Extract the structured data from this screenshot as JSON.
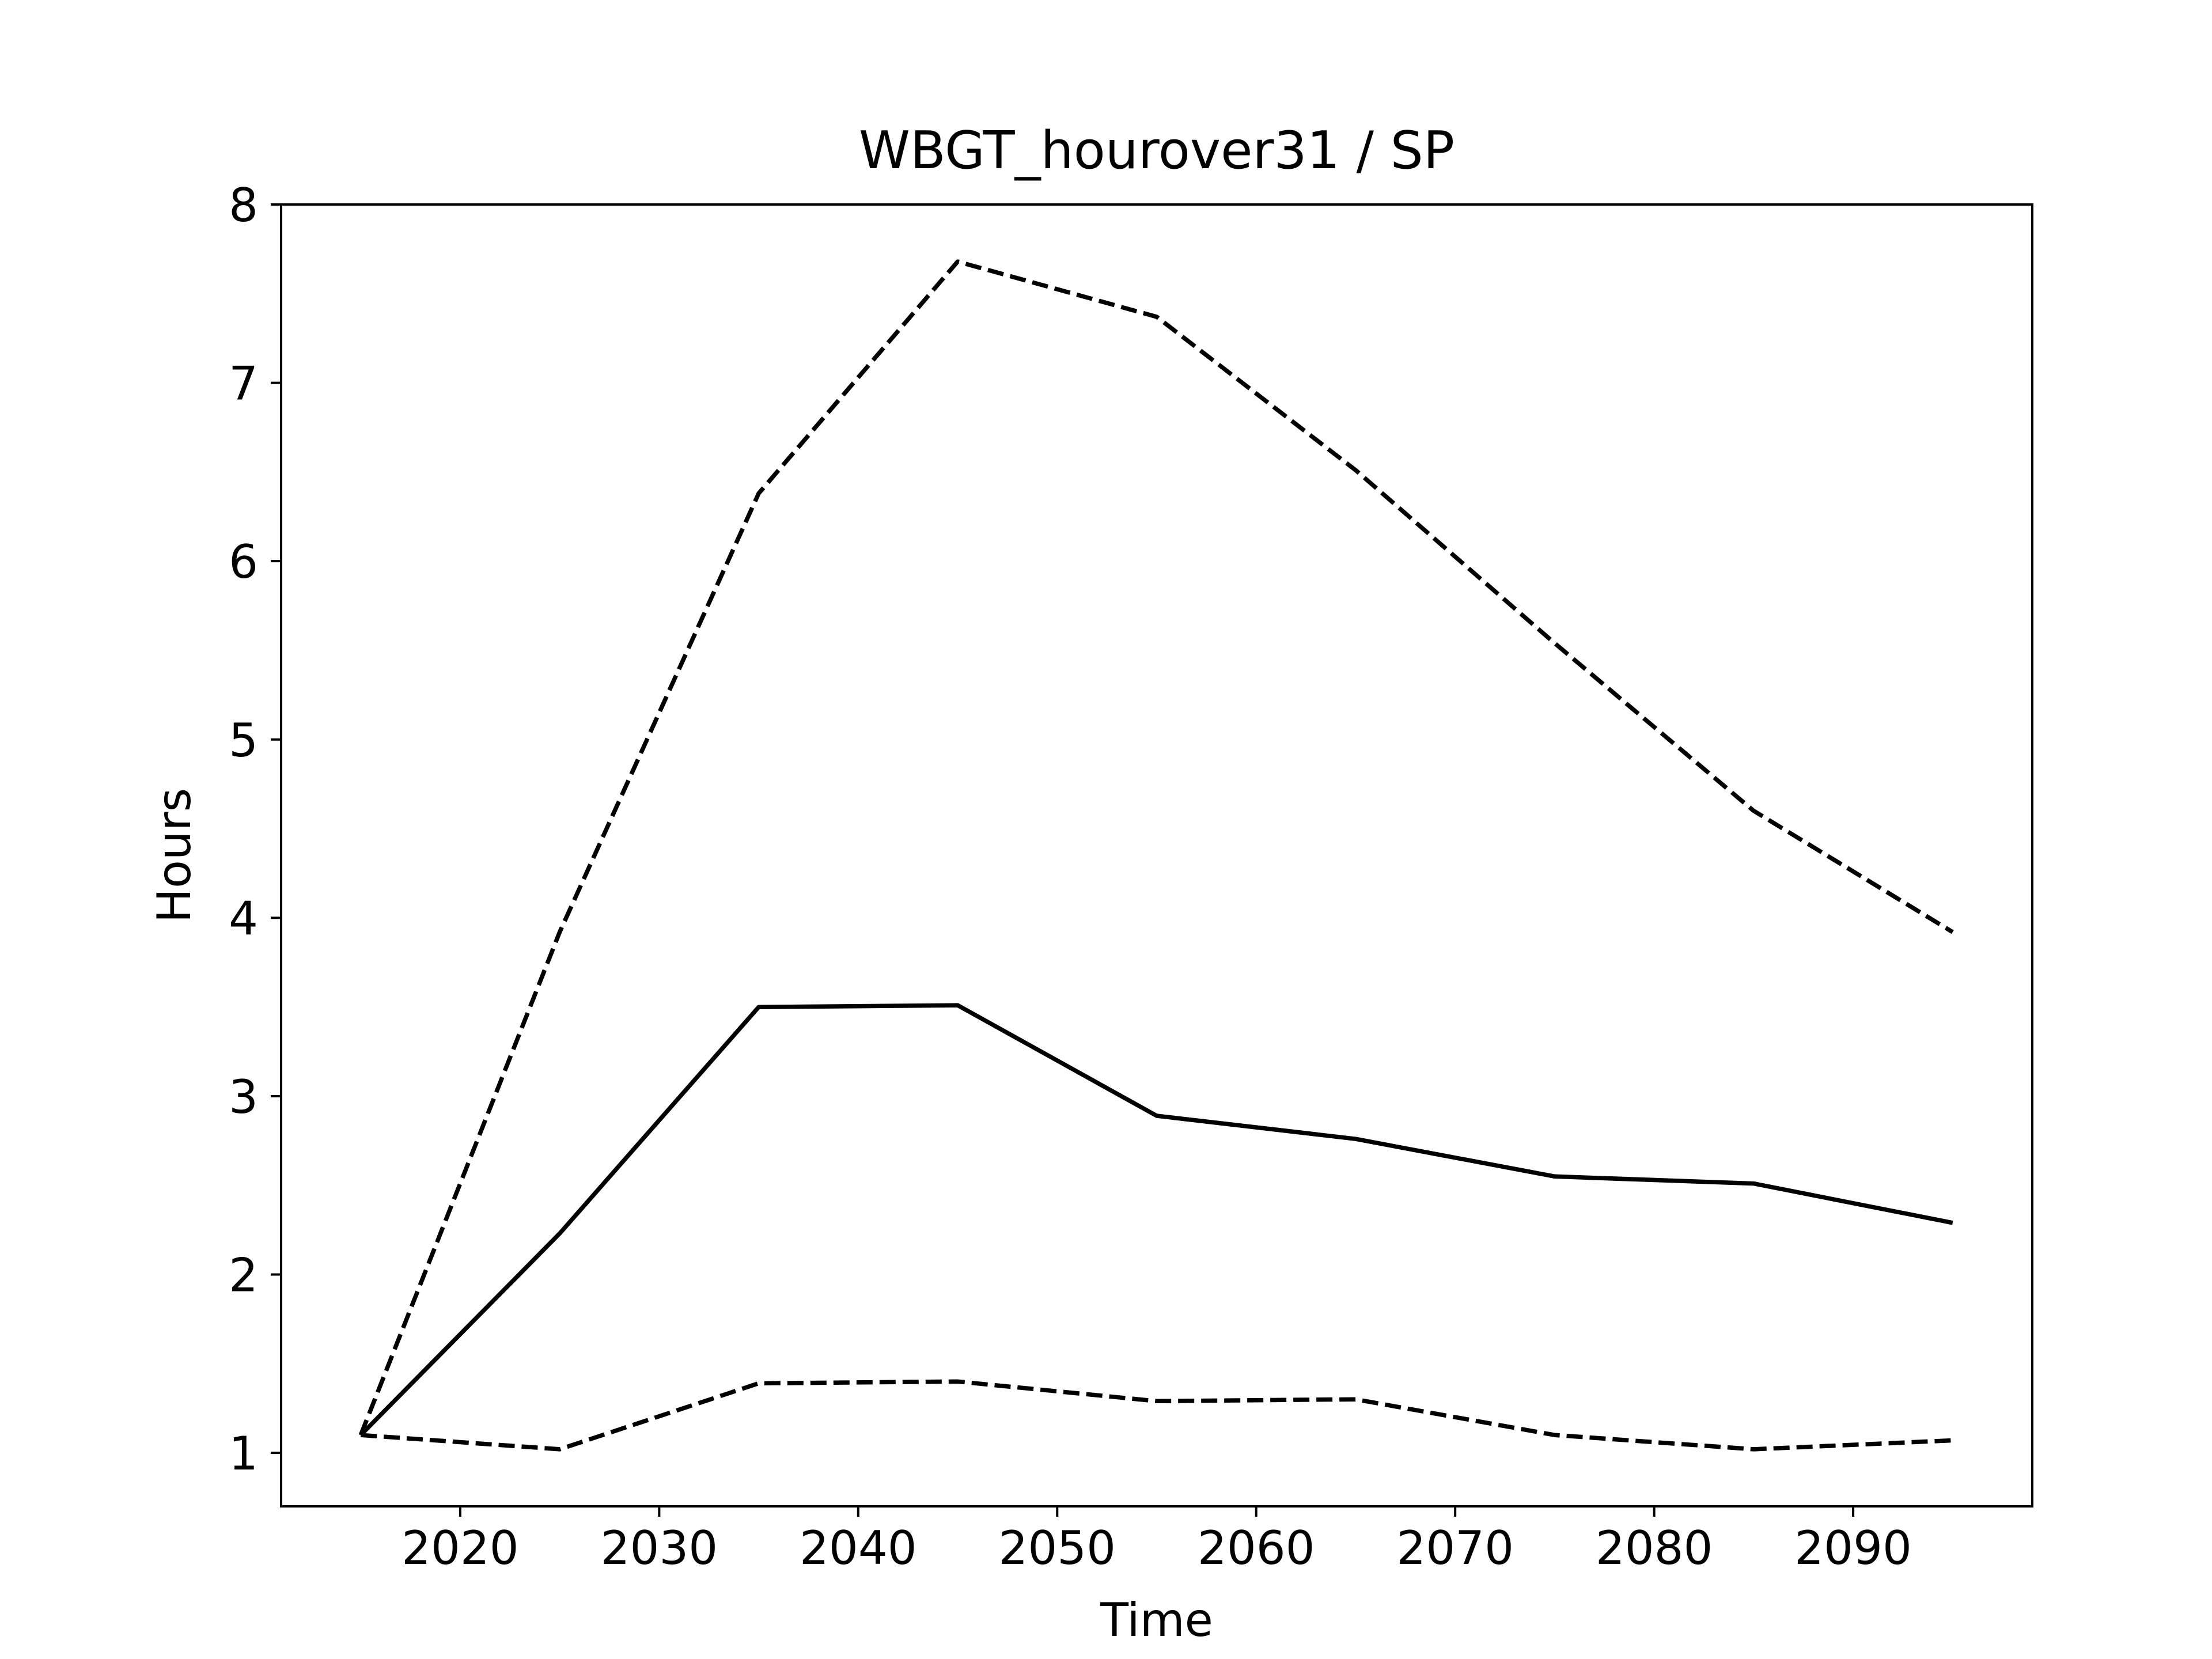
{
  "chart_data": {
    "type": "line",
    "title": "WBGT_hourover31 / SP",
    "xlabel": "Time",
    "ylabel": "Hours",
    "xlim": [
      2011,
      2099
    ],
    "ylim": [
      0.7,
      8.0
    ],
    "xticks": [
      2020,
      2030,
      2040,
      2050,
      2060,
      2070,
      2080,
      2090
    ],
    "yticks": [
      1,
      2,
      3,
      4,
      5,
      6,
      7,
      8
    ],
    "x": [
      2015,
      2025,
      2035,
      2045,
      2055,
      2065,
      2075,
      2085,
      2095
    ],
    "grid": false,
    "legend": "none",
    "series": [
      {
        "style": "dashed",
        "color": "#000000",
        "values": [
          1.1,
          3.92,
          6.38,
          7.68,
          7.37,
          6.51,
          5.54,
          4.6,
          3.92
        ]
      },
      {
        "style": "solid",
        "color": "#000000",
        "values": [
          1.1,
          2.23,
          3.5,
          3.51,
          2.89,
          2.76,
          2.55,
          2.51,
          2.29
        ]
      },
      {
        "style": "dashed",
        "color": "#000000",
        "values": [
          1.1,
          1.02,
          1.39,
          1.4,
          1.29,
          1.3,
          1.1,
          1.02,
          1.07
        ]
      }
    ]
  }
}
